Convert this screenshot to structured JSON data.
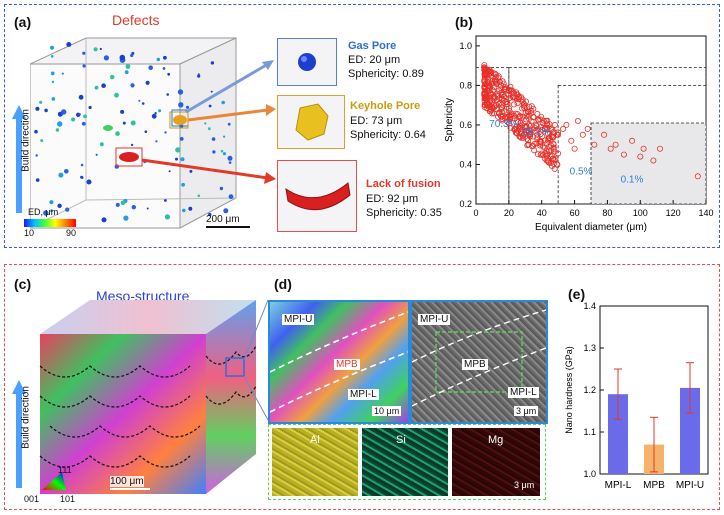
{
  "colors": {
    "top_border": "#3b5bdb",
    "bottom_border": "#e05050",
    "gas": "#2a6fd8",
    "keyhole": "#c99a12",
    "lof": "#e03a2a",
    "scatter": "#e8302a",
    "bar_blue": "#6b6bea",
    "bar_orange": "#f5b26b",
    "label_blue": "#2a7fd8"
  },
  "panel_a": {
    "label": "(a)",
    "title": "Defects",
    "build_direction": "Build direction",
    "colorbar_title": "ED, μm",
    "colorbar_min": "10",
    "colorbar_max": "90",
    "scale_bar": "200 μm",
    "defects": [
      {
        "name": "Gas Pore",
        "ed": "ED: 20 μm",
        "sphericity": "Sphericity: 0.89"
      },
      {
        "name": "Keyhole Pore",
        "ed": "ED: 73 μm",
        "sphericity": "Sphericity: 0.64"
      },
      {
        "name": "Lack of fusion",
        "ed": "ED: 92 μm",
        "sphericity": "Sphericity: 0.35"
      }
    ]
  },
  "panel_b": {
    "label": "(b)"
  },
  "chart_data": [
    {
      "type": "scatter",
      "title": "",
      "xlabel": "Equivalent diameter (μm)",
      "ylabel": "Sphericity",
      "xlim": [
        0,
        140
      ],
      "ylim": [
        0.2,
        1.05
      ],
      "xticks": [
        "0",
        "20",
        "40",
        "60",
        "80",
        "100",
        "120",
        "140"
      ],
      "yticks": [
        "0.2",
        "0.4",
        "0.6",
        "0.8",
        "1.0"
      ],
      "region_boundaries_x": [
        20,
        50,
        70
      ],
      "region_tops_y": [
        0.89,
        0.8,
        0.61
      ],
      "percent_labels": [
        "70.3%",
        "29.1%",
        "0.5%",
        "0.1%"
      ],
      "points_x": [
        78,
        82,
        85,
        90,
        95,
        100,
        102,
        108,
        112,
        135,
        62,
        65,
        68,
        72,
        55,
        58,
        60,
        48,
        50,
        53
      ],
      "points_y": [
        0.55,
        0.48,
        0.5,
        0.45,
        0.52,
        0.44,
        0.48,
        0.42,
        0.48,
        0.34,
        0.62,
        0.55,
        0.58,
        0.5,
        0.6,
        0.52,
        0.48,
        0.6,
        0.55,
        0.58
      ]
    },
    {
      "type": "bar",
      "title": "",
      "xlabel": "",
      "ylabel": "Nano hardness (GPa)",
      "categories": [
        "MPI-L",
        "MPB",
        "MPI-U"
      ],
      "values": [
        1.19,
        1.07,
        1.205
      ],
      "errors": [
        0.06,
        0.065,
        0.06
      ],
      "ylim": [
        1.0,
        1.4
      ],
      "yticks": [
        "1.0",
        "1.1",
        "1.2",
        "1.3",
        "1.4"
      ]
    }
  ],
  "panel_c": {
    "label": "(c)",
    "title": "Meso-structure",
    "build_direction": "Build direction",
    "scale_bar": "100 μm",
    "ipf_top": "111",
    "ipf_left": "001",
    "ipf_right": "101"
  },
  "panel_d": {
    "label": "(d)",
    "ebsd_labels": [
      "MPI-U",
      "MPB",
      "MPI-L"
    ],
    "ebsd_scale": "10 μm",
    "sem_labels": [
      "MPI-U",
      "MPB",
      "MPI-L"
    ],
    "sem_scale": "3 μm",
    "eds": [
      "Al",
      "Si",
      "Mg"
    ],
    "eds_scale": "3 μm"
  },
  "panel_e": {
    "label": "(e)"
  }
}
